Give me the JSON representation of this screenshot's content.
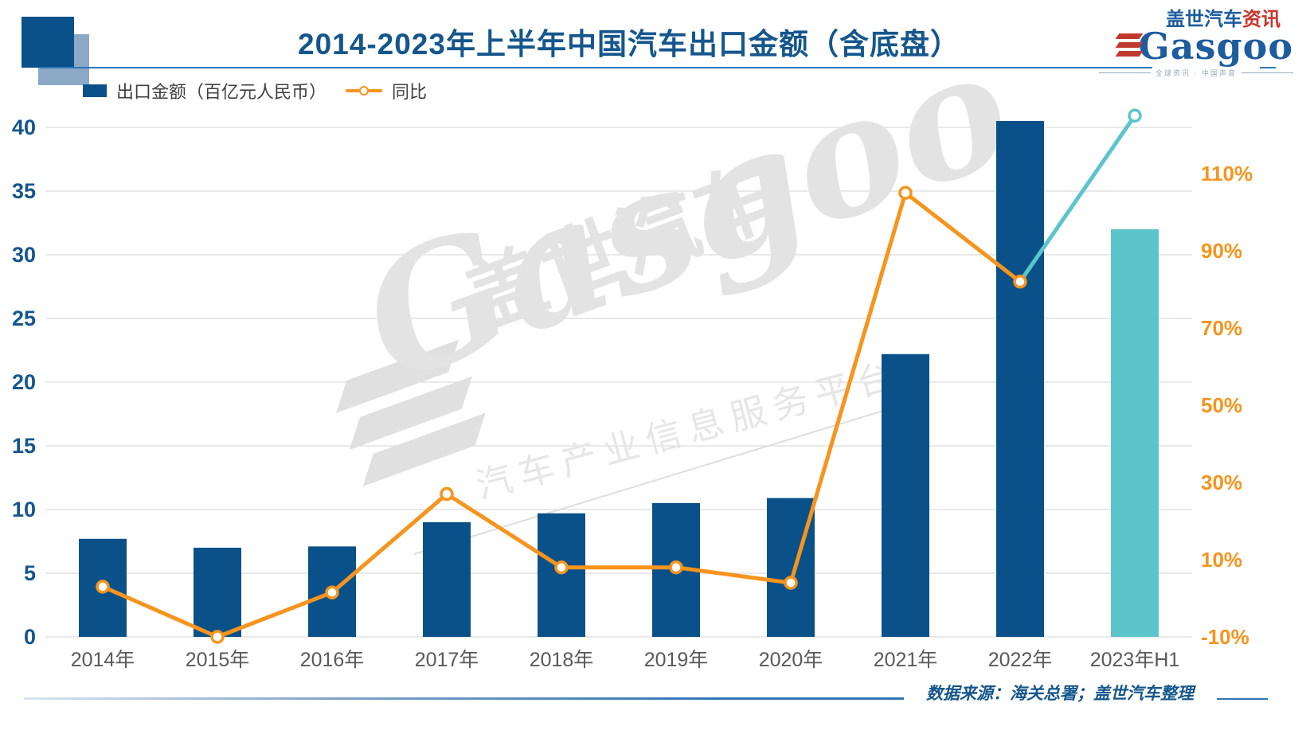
{
  "header": {
    "title": "2014-2023年上半年中国汽车出口金额（含底盘）",
    "logo": {
      "cn_main": "盖世汽车",
      "cn_accent": "资讯",
      "latin": "Gasgoo",
      "tagline": "全球资讯 · 中国声音"
    }
  },
  "legend": {
    "bar_label": "出口金额（百亿元人民币）",
    "line_label": "同比"
  },
  "watermark": {
    "cn": "盖世汽车",
    "latin": "Gasgoo",
    "tagline": "汽车产业信息服务平台"
  },
  "footer": {
    "source": "数据来源：海关总署；盖世汽车整理"
  },
  "colors": {
    "bar": "#0A5189",
    "bar_highlight": "#5BC5CB",
    "line": "#F7941D",
    "line_highlight": "#5BC5CB",
    "marker_fill": "#FFFFFF",
    "title": "#15568D",
    "axis_left": "#15568D",
    "axis_right": "#F7941D",
    "x_labels": "#595959",
    "grid": "#DCDCDC"
  },
  "chart_data": {
    "type": "bar+line combo",
    "title": "2014-2023年上半年中国汽车出口金额（含底盘）",
    "categories": [
      "2014年",
      "2015年",
      "2016年",
      "2017年",
      "2018年",
      "2019年",
      "2020年",
      "2021年",
      "2022年",
      "2023年H1"
    ],
    "series": [
      {
        "name": "出口金额（百亿元人民币）",
        "type": "bar",
        "axis": "left",
        "values": [
          7.7,
          7.0,
          7.1,
          9.0,
          9.7,
          10.5,
          10.9,
          22.2,
          40.5,
          32.0
        ],
        "highlight_last_bar": true
      },
      {
        "name": "同比",
        "type": "line",
        "axis": "right",
        "unit": "%",
        "values": [
          3,
          -10,
          1.5,
          27,
          8,
          8,
          4,
          105,
          82,
          125
        ],
        "highlight_last_segment": true
      }
    ],
    "left_axis": {
      "min": 0,
      "max": 40,
      "step": 5,
      "ticks": [
        0,
        5,
        10,
        15,
        20,
        25,
        30,
        35,
        40
      ]
    },
    "right_axis": {
      "ticks": [
        -10,
        10,
        30,
        50,
        70,
        90,
        110
      ],
      "tick_labels": [
        "-10%",
        "10%",
        "30%",
        "50%",
        "70%",
        "90%",
        "110%"
      ]
    },
    "grid": "horizontal",
    "legend_position": "top-left"
  }
}
